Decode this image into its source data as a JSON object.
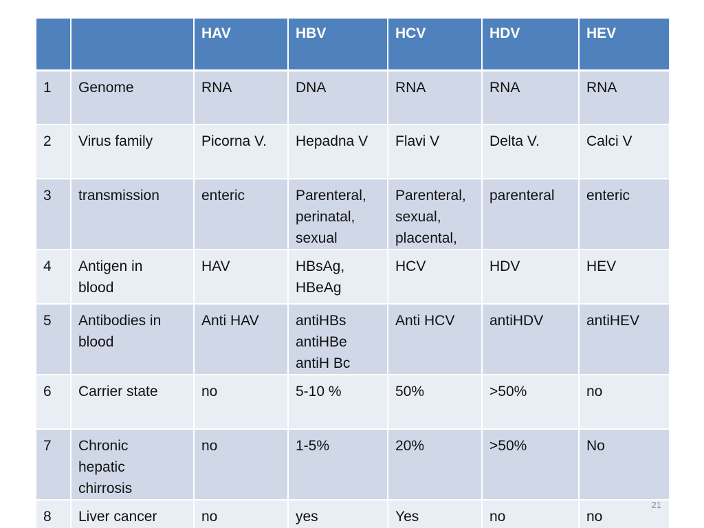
{
  "table": {
    "headers": [
      "",
      "",
      "HAV",
      "HBV",
      "HCV",
      "HDV",
      "HEV"
    ],
    "rows": [
      {
        "num": "1",
        "property": [
          "Genome"
        ],
        "cells": [
          [
            "RNA"
          ],
          [
            "DNA"
          ],
          [
            "RNA"
          ],
          [
            "RNA"
          ],
          [
            "RNA"
          ]
        ]
      },
      {
        "num": "2",
        "property": [
          "Virus family"
        ],
        "cells": [
          [
            "Picorna V."
          ],
          [
            "Hepadna V"
          ],
          [
            "Flavi V"
          ],
          [
            "Delta V."
          ],
          [
            "Calci V"
          ]
        ]
      },
      {
        "num": "3",
        "property": [
          "transmission"
        ],
        "cells": [
          [
            "enteric"
          ],
          [
            "Parenteral,",
            "perinatal,",
            "sexual"
          ],
          [
            "Parenteral,",
            "sexual,",
            "placental,"
          ],
          [
            "parenteral"
          ],
          [
            "enteric"
          ]
        ]
      },
      {
        "num": "4",
        "property": [
          "Antigen in",
          "blood"
        ],
        "cells": [
          [
            "HAV"
          ],
          [
            "HBsAg,",
            "HBeAg"
          ],
          [
            "HCV"
          ],
          [
            "HDV"
          ],
          [
            "HEV"
          ]
        ]
      },
      {
        "num": "5",
        "property": [
          "Antibodies in",
          "blood"
        ],
        "cells": [
          [
            "Anti HAV"
          ],
          [
            "antiHBs",
            "antiHBe",
            "antiH Bc"
          ],
          [
            "Anti HCV"
          ],
          [
            "antiHDV"
          ],
          [
            "antiHEV"
          ]
        ]
      },
      {
        "num": "6",
        "property": [
          "Carrier state"
        ],
        "cells": [
          [
            "no"
          ],
          [
            "5-10 %"
          ],
          [
            "50%"
          ],
          [
            ">50%"
          ],
          [
            "no"
          ]
        ]
      },
      {
        "num": "7",
        "property": [
          "Chronic",
          "hepatic",
          "chirrosis"
        ],
        "cells": [
          [
            "no"
          ],
          [
            "1-5%"
          ],
          [
            "20%"
          ],
          [
            ">50%"
          ],
          [
            "No"
          ]
        ]
      },
      {
        "num": "8",
        "property": [
          "Liver cancer"
        ],
        "cells": [
          [
            "no"
          ],
          [
            "yes"
          ],
          [
            "Yes"
          ],
          [
            "no"
          ],
          [
            "no"
          ]
        ]
      }
    ]
  },
  "page_number": "21",
  "colors": {
    "header_bg": "#4f81bd",
    "row_odd_bg": "#d0d8e8",
    "row_even_bg": "#e9edf4"
  }
}
